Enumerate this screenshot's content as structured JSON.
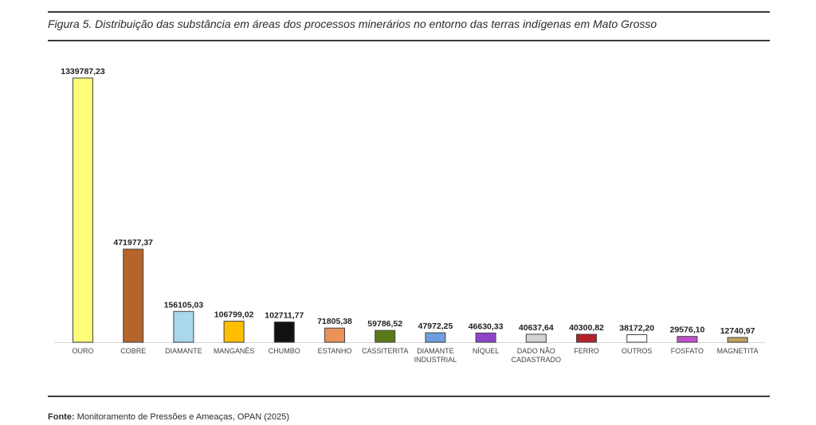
{
  "caption": "Figura 5.  Distribuição das substância em áreas dos processos minerários no entorno das terras indígenas em Mato Grosso",
  "source": {
    "label": "Fonte:",
    "text": " Monitoramento de Pressões e Ameaças, OPAN (2025)"
  },
  "chart_data": {
    "type": "bar",
    "title": "",
    "xlabel": "",
    "ylabel": "",
    "ylim": [
      0,
      1339787.23
    ],
    "grid": false,
    "categories": [
      [
        "OURO"
      ],
      [
        "COBRE"
      ],
      [
        "DIAMANTE"
      ],
      [
        "MANGANÊS"
      ],
      [
        "CHUMBO"
      ],
      [
        "ESTANHO"
      ],
      [
        "CASSITERITA"
      ],
      [
        "DIAMANTE",
        "INDUSTRIAL"
      ],
      [
        "NÍQUEL"
      ],
      [
        "DADO NÃO",
        "CADASTRADO"
      ],
      [
        "FERRO"
      ],
      [
        "OUTROS"
      ],
      [
        "FOSFATO"
      ],
      [
        "MAGNETITA"
      ]
    ],
    "values": [
      1339787.23,
      471977.37,
      156105.03,
      106799.02,
      102711.77,
      71805.38,
      59786.52,
      47972.25,
      46630.33,
      40637.64,
      40300.82,
      38172.2,
      29576.1,
      12740.97
    ],
    "value_labels": [
      "1339787,23",
      "471977,37",
      "156105,03",
      "106799,02",
      "102711,77",
      "71805,38",
      "59786,52",
      "47972,25",
      "46630,33",
      "40637,64",
      "40300,82",
      "38172,20",
      "29576,10",
      "12740,97"
    ],
    "colors": [
      "#fdfd7a",
      "#b5652a",
      "#a9d8ea",
      "#ffbf00",
      "#111111",
      "#e9925a",
      "#5a7a1a",
      "#6f9ee0",
      "#8e44c8",
      "#d3d3d3",
      "#b4202a",
      "#ffffff",
      "#c050c8",
      "#c0a060"
    ]
  }
}
